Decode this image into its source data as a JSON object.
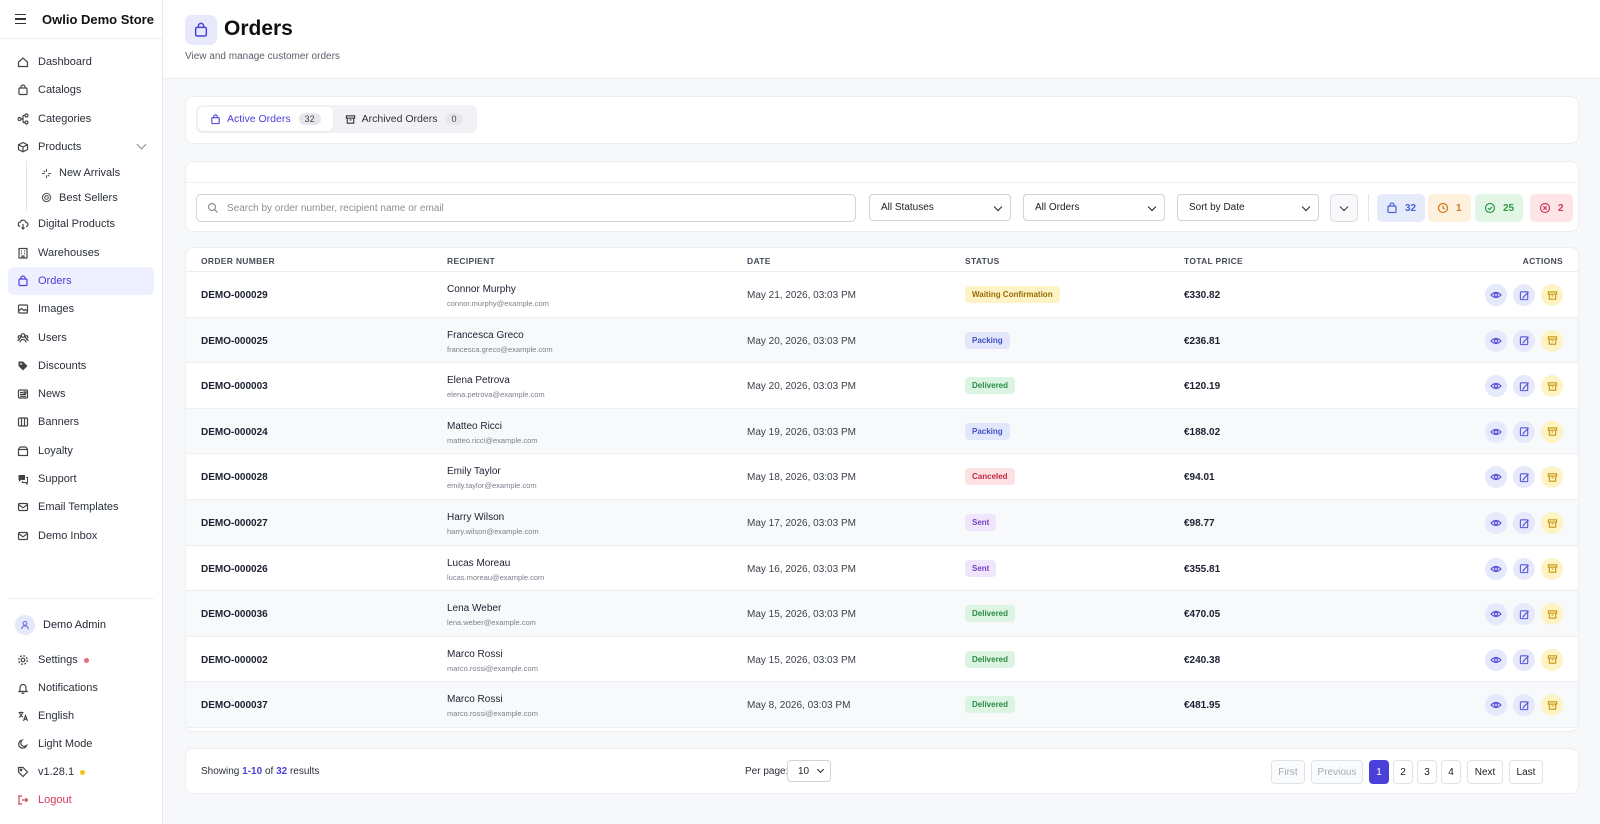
{
  "app": {
    "title": "Owlio Demo Store"
  },
  "sidebar": {
    "items": [
      {
        "label": "Dashboard",
        "icon": "home-icon"
      },
      {
        "label": "Catalogs",
        "icon": "bag-icon"
      },
      {
        "label": "Categories",
        "icon": "hierarchy-icon"
      },
      {
        "label": "Products",
        "icon": "box-icon"
      },
      {
        "label": "Digital Products",
        "icon": "cloud-icon"
      },
      {
        "label": "Warehouses",
        "icon": "building-icon"
      },
      {
        "label": "Orders",
        "icon": "bag-icon"
      },
      {
        "label": "Images",
        "icon": "image-icon"
      },
      {
        "label": "Users",
        "icon": "users-icon"
      },
      {
        "label": "Discounts",
        "icon": "tag-icon"
      },
      {
        "label": "News",
        "icon": "newspaper-icon"
      },
      {
        "label": "Banners",
        "icon": "columns-icon"
      },
      {
        "label": "Loyalty",
        "icon": "gift-icon"
      },
      {
        "label": "Support",
        "icon": "chat-icon"
      },
      {
        "label": "Email Templates",
        "icon": "mail-icon"
      },
      {
        "label": "Demo Inbox",
        "icon": "mail-icon"
      }
    ],
    "products_sub": [
      {
        "label": "New Arrivals",
        "icon": "sparkle-icon"
      },
      {
        "label": "Best Sellers",
        "icon": "target-icon"
      }
    ],
    "user": {
      "name": "Demo Admin"
    },
    "bottom": {
      "settings": "Settings",
      "notifications": "Notifications",
      "language": "English",
      "theme": "Light Mode",
      "version": "v1.28.1",
      "logout": "Logout"
    }
  },
  "page": {
    "title": "Orders",
    "subtitle": "View and manage customer orders"
  },
  "tabs": [
    {
      "label": "Active Orders",
      "count": "32"
    },
    {
      "label": "Archived Orders",
      "count": "0"
    }
  ],
  "filters": {
    "search_placeholder": "Search by order number, recipient name or email",
    "status": "All Statuses",
    "orders": "All Orders",
    "sort": "Sort by Date"
  },
  "stats": {
    "total": "32",
    "pending": "1",
    "completed": "25",
    "canceled": "2"
  },
  "table": {
    "headers": {
      "order_number": "ORDER NUMBER",
      "recipient": "RECIPIENT",
      "date": "DATE",
      "status": "STATUS",
      "total_price": "TOTAL PRICE",
      "actions": "ACTIONS"
    },
    "rows": [
      {
        "number": "DEMO-000029",
        "name": "Connor Murphy",
        "email": "connor.murphy@example.com",
        "date": "May 21, 2026, 03:03 PM",
        "status": "Waiting Confirmation",
        "price": "€330.82"
      },
      {
        "number": "DEMO-000025",
        "name": "Francesca Greco",
        "email": "francesca.greco@example.com",
        "date": "May 20, 2026, 03:03 PM",
        "status": "Packing",
        "price": "€236.81"
      },
      {
        "number": "DEMO-000003",
        "name": "Elena Petrova",
        "email": "elena.petrova@example.com",
        "date": "May 20, 2026, 03:03 PM",
        "status": "Delivered",
        "price": "€120.19"
      },
      {
        "number": "DEMO-000024",
        "name": "Matteo Ricci",
        "email": "matteo.ricci@example.com",
        "date": "May 19, 2026, 03:03 PM",
        "status": "Packing",
        "price": "€188.02"
      },
      {
        "number": "DEMO-000028",
        "name": "Emily Taylor",
        "email": "emily.taylor@example.com",
        "date": "May 18, 2026, 03:03 PM",
        "status": "Canceled",
        "price": "€94.01"
      },
      {
        "number": "DEMO-000027",
        "name": "Harry Wilson",
        "email": "harry.wilson@example.com",
        "date": "May 17, 2026, 03:03 PM",
        "status": "Sent",
        "price": "€98.77"
      },
      {
        "number": "DEMO-000026",
        "name": "Lucas Moreau",
        "email": "lucas.moreau@example.com",
        "date": "May 16, 2026, 03:03 PM",
        "status": "Sent",
        "price": "€355.81"
      },
      {
        "number": "DEMO-000036",
        "name": "Lena Weber",
        "email": "lena.weber@example.com",
        "date": "May 15, 2026, 03:03 PM",
        "status": "Delivered",
        "price": "€470.05"
      },
      {
        "number": "DEMO-000002",
        "name": "Marco Rossi",
        "email": "marco.rossi@example.com",
        "date": "May 15, 2026, 03:03 PM",
        "status": "Delivered",
        "price": "€240.38"
      },
      {
        "number": "DEMO-000037",
        "name": "Marco Rossi",
        "email": "marco.rossi@example.com",
        "date": "May 8, 2026, 03:03 PM",
        "status": "Delivered",
        "price": "€481.95"
      }
    ]
  },
  "pagination": {
    "showing_prefix": "Showing",
    "range": "1-10",
    "of": "of",
    "total": "32",
    "results": "results",
    "per_page_label": "Per page:",
    "per_page": "10",
    "first": "First",
    "previous": "Previous",
    "pages": [
      "1",
      "2",
      "3",
      "4"
    ],
    "next": "Next",
    "last": "Last"
  },
  "colors": {
    "accent": "#4a3fd8",
    "waiting": "#fdf3c4",
    "packing": "#e3e7fb",
    "delivered": "#dcf5e2",
    "canceled": "#fde2e4",
    "sent": "#efe6fb"
  }
}
